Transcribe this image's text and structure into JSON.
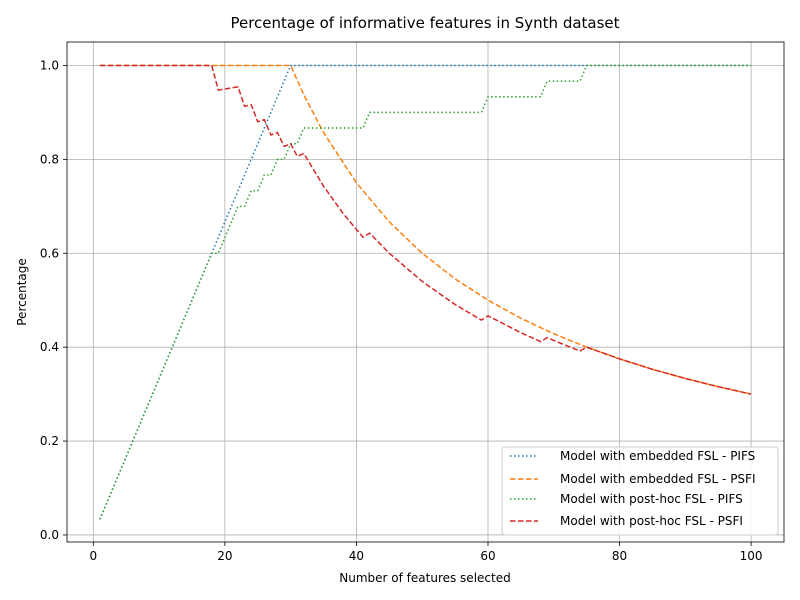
{
  "chart_data": {
    "type": "line",
    "title": "Percentage of informative features in Synth dataset",
    "xlabel": "Number of features selected",
    "ylabel": "Percentage",
    "xlim": [
      -4,
      105
    ],
    "ylim": [
      -0.015,
      1.05
    ],
    "xticks": [
      0,
      20,
      40,
      60,
      80,
      100
    ],
    "yticks": [
      0.0,
      0.2,
      0.4,
      0.6,
      0.8,
      1.0
    ],
    "xtick_labels": [
      "0",
      "20",
      "40",
      "60",
      "80",
      "100"
    ],
    "ytick_labels": [
      "0.0",
      "0.2",
      "0.4",
      "0.6",
      "0.8",
      "1.0"
    ],
    "grid": true,
    "legend_position": "bottom-right",
    "series": [
      {
        "name": "Model with embedded FSL - PIFS",
        "color": "#1f77b4",
        "style": "dotted",
        "points": [
          [
            1,
            0.0333
          ],
          [
            30,
            1.0
          ],
          [
            100,
            1.0
          ]
        ]
      },
      {
        "name": "Model with embedded FSL - PSFI",
        "color": "#ff7f0e",
        "style": "dashed",
        "points": [
          [
            1,
            1.0
          ],
          [
            30,
            1.0
          ],
          [
            32,
            0.9375
          ],
          [
            35,
            0.8571
          ],
          [
            40,
            0.75
          ],
          [
            45,
            0.6667
          ],
          [
            50,
            0.6
          ],
          [
            55,
            0.5455
          ],
          [
            60,
            0.5
          ],
          [
            65,
            0.4615
          ],
          [
            70,
            0.4286
          ],
          [
            75,
            0.4
          ],
          [
            80,
            0.375
          ],
          [
            85,
            0.3529
          ],
          [
            90,
            0.3333
          ],
          [
            95,
            0.3158
          ],
          [
            100,
            0.3
          ]
        ]
      },
      {
        "name": "Model with post-hoc FSL - PIFS",
        "color": "#2ca02c",
        "style": "dotted",
        "points": [
          [
            1,
            0.0333
          ],
          [
            18,
            0.6
          ],
          [
            19,
            0.6
          ],
          [
            22,
            0.7
          ],
          [
            23,
            0.7
          ],
          [
            24,
            0.7333
          ],
          [
            25,
            0.7333
          ],
          [
            26,
            0.7667
          ],
          [
            27,
            0.7667
          ],
          [
            28,
            0.8
          ],
          [
            29,
            0.8
          ],
          [
            30,
            0.8333
          ],
          [
            31,
            0.8333
          ],
          [
            32,
            0.8667
          ],
          [
            41,
            0.8667
          ],
          [
            42,
            0.9
          ],
          [
            59,
            0.9
          ],
          [
            60,
            0.9333
          ],
          [
            68,
            0.9333
          ],
          [
            69,
            0.9667
          ],
          [
            74,
            0.9667
          ],
          [
            75,
            1.0
          ],
          [
            100,
            1.0
          ]
        ]
      },
      {
        "name": "Model with post-hoc FSL - PSFI",
        "color": "#d62728",
        "style": "dashed",
        "points": [
          [
            1,
            1.0
          ],
          [
            18,
            1.0
          ],
          [
            19,
            0.9474
          ],
          [
            20,
            0.95
          ],
          [
            22,
            0.9545
          ],
          [
            23,
            0.913
          ],
          [
            24,
            0.9167
          ],
          [
            25,
            0.88
          ],
          [
            26,
            0.8846
          ],
          [
            27,
            0.8519
          ],
          [
            28,
            0.8571
          ],
          [
            29,
            0.8276
          ],
          [
            30,
            0.8333
          ],
          [
            31,
            0.8065
          ],
          [
            32,
            0.8125
          ],
          [
            35,
            0.7429
          ],
          [
            38,
            0.6842
          ],
          [
            41,
            0.6341
          ],
          [
            42,
            0.6429
          ],
          [
            45,
            0.6
          ],
          [
            50,
            0.54
          ],
          [
            55,
            0.4909
          ],
          [
            59,
            0.4576
          ],
          [
            60,
            0.4667
          ],
          [
            65,
            0.4308
          ],
          [
            68,
            0.4118
          ],
          [
            69,
            0.4203
          ],
          [
            72,
            0.4028
          ],
          [
            74,
            0.3919
          ],
          [
            75,
            0.4
          ],
          [
            80,
            0.375
          ],
          [
            85,
            0.3529
          ],
          [
            90,
            0.3333
          ],
          [
            95,
            0.3158
          ],
          [
            100,
            0.3
          ]
        ]
      }
    ]
  }
}
